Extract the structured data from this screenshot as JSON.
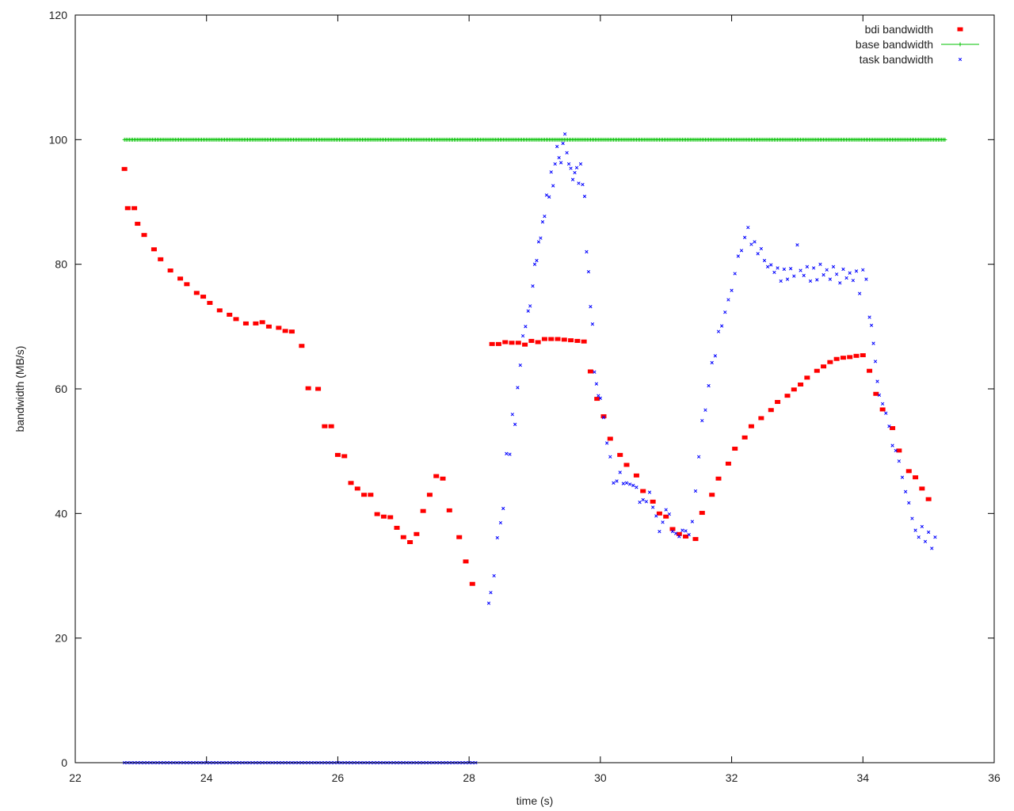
{
  "chart_data": {
    "type": "scatter",
    "title": "",
    "xlabel": "time (s)",
    "ylabel": "bandwidth (MB/s)",
    "xlim": [
      22,
      36
    ],
    "ylim": [
      0,
      120
    ],
    "x_ticks": [
      "22",
      "24",
      "26",
      "28",
      "30",
      "32",
      "34",
      "36"
    ],
    "y_ticks": [
      "0",
      "20",
      "40",
      "60",
      "80",
      "100",
      "120"
    ],
    "grid": false,
    "legend_position": "top-right",
    "series": [
      {
        "name": "bdi bandwidth",
        "color": "#ff0000",
        "marker": "square",
        "points": [
          [
            22.75,
            95.3
          ],
          [
            22.8,
            89
          ],
          [
            22.9,
            89
          ],
          [
            22.95,
            86.5
          ],
          [
            23.05,
            84.7
          ],
          [
            23.2,
            82.4
          ],
          [
            23.3,
            80.8
          ],
          [
            23.45,
            79
          ],
          [
            23.6,
            77.7
          ],
          [
            23.7,
            76.8
          ],
          [
            23.85,
            75.4
          ],
          [
            23.95,
            74.8
          ],
          [
            24.05,
            73.8
          ],
          [
            24.2,
            72.6
          ],
          [
            24.35,
            71.9
          ],
          [
            24.45,
            71.2
          ],
          [
            24.6,
            70.5
          ],
          [
            24.75,
            70.5
          ],
          [
            24.85,
            70.7
          ],
          [
            24.95,
            70.0
          ],
          [
            25.1,
            69.8
          ],
          [
            25.2,
            69.3
          ],
          [
            25.3,
            69.2
          ],
          [
            25.45,
            66.9
          ],
          [
            25.55,
            60.1
          ],
          [
            25.7,
            60.0
          ],
          [
            25.8,
            54.0
          ],
          [
            25.9,
            54.0
          ],
          [
            26.0,
            49.4
          ],
          [
            26.1,
            49.2
          ],
          [
            26.2,
            44.9
          ],
          [
            26.3,
            44.0
          ],
          [
            26.4,
            43.0
          ],
          [
            26.5,
            43.0
          ],
          [
            26.6,
            39.9
          ],
          [
            26.7,
            39.5
          ],
          [
            26.8,
            39.4
          ],
          [
            26.9,
            37.7
          ],
          [
            27.0,
            36.2
          ],
          [
            27.1,
            35.4
          ],
          [
            27.2,
            36.7
          ],
          [
            27.3,
            40.4
          ],
          [
            27.4,
            43.0
          ],
          [
            27.5,
            46.0
          ],
          [
            27.6,
            45.6
          ],
          [
            27.7,
            40.5
          ],
          [
            27.85,
            36.2
          ],
          [
            27.95,
            32.3
          ],
          [
            28.05,
            28.7
          ],
          [
            28.35,
            67.2
          ],
          [
            28.45,
            67.2
          ],
          [
            28.55,
            67.5
          ],
          [
            28.65,
            67.4
          ],
          [
            28.75,
            67.4
          ],
          [
            28.85,
            67.1
          ],
          [
            28.95,
            67.7
          ],
          [
            29.05,
            67.5
          ],
          [
            29.15,
            68.0
          ],
          [
            29.25,
            68.0
          ],
          [
            29.35,
            68.0
          ],
          [
            29.45,
            67.9
          ],
          [
            29.55,
            67.8
          ],
          [
            29.65,
            67.7
          ],
          [
            29.75,
            67.6
          ],
          [
            29.85,
            62.8
          ],
          [
            29.95,
            58.4
          ],
          [
            30.05,
            55.6
          ],
          [
            30.15,
            52.0
          ],
          [
            30.3,
            49.4
          ],
          [
            30.4,
            47.8
          ],
          [
            30.55,
            46.1
          ],
          [
            30.65,
            43.6
          ],
          [
            30.8,
            41.9
          ],
          [
            30.9,
            40.0
          ],
          [
            31.0,
            39.5
          ],
          [
            31.1,
            37.5
          ],
          [
            31.2,
            36.7
          ],
          [
            31.3,
            36.3
          ],
          [
            31.45,
            35.9
          ],
          [
            31.55,
            40.1
          ],
          [
            31.7,
            43.0
          ],
          [
            31.8,
            45.6
          ],
          [
            31.95,
            48.0
          ],
          [
            32.05,
            50.4
          ],
          [
            32.2,
            52.2
          ],
          [
            32.3,
            54.0
          ],
          [
            32.45,
            55.3
          ],
          [
            32.6,
            56.6
          ],
          [
            32.7,
            57.9
          ],
          [
            32.85,
            58.9
          ],
          [
            32.95,
            59.9
          ],
          [
            33.05,
            60.7
          ],
          [
            33.15,
            61.8
          ],
          [
            33.3,
            62.9
          ],
          [
            33.4,
            63.6
          ],
          [
            33.5,
            64.3
          ],
          [
            33.6,
            64.8
          ],
          [
            33.7,
            65.0
          ],
          [
            33.8,
            65.1
          ],
          [
            33.9,
            65.3
          ],
          [
            34.0,
            65.4
          ],
          [
            34.1,
            62.9
          ],
          [
            34.2,
            59.2
          ],
          [
            34.3,
            56.7
          ],
          [
            34.45,
            53.7
          ],
          [
            34.55,
            50.1
          ],
          [
            34.7,
            46.8
          ],
          [
            34.8,
            45.8
          ],
          [
            34.9,
            44.0
          ],
          [
            35.0,
            42.3
          ]
        ]
      },
      {
        "name": "base bandwidth",
        "color": "#00c000",
        "marker": "plus",
        "x_range": [
          22.75,
          35.25
        ],
        "x_step": 0.025,
        "y_constant": 100
      },
      {
        "name": "task bandwidth",
        "color": "#0000ff",
        "marker": "x",
        "zero_segment": {
          "x_range": [
            22.75,
            28.1
          ],
          "x_step": 0.05,
          "y": 0
        },
        "points": [
          [
            28.3,
            25.6
          ],
          [
            28.33,
            27.3
          ],
          [
            28.38,
            30.0
          ],
          [
            28.43,
            36.1
          ],
          [
            28.48,
            38.5
          ],
          [
            28.52,
            40.8
          ],
          [
            28.57,
            49.6
          ],
          [
            28.62,
            49.5
          ],
          [
            28.66,
            55.9
          ],
          [
            28.7,
            54.3
          ],
          [
            28.74,
            60.2
          ],
          [
            28.78,
            63.8
          ],
          [
            28.82,
            68.5
          ],
          [
            28.86,
            70.0
          ],
          [
            28.9,
            72.5
          ],
          [
            28.93,
            73.3
          ],
          [
            28.97,
            76.5
          ],
          [
            29.0,
            80.0
          ],
          [
            29.03,
            80.6
          ],
          [
            29.06,
            83.6
          ],
          [
            29.09,
            84.2
          ],
          [
            29.12,
            86.8
          ],
          [
            29.15,
            87.7
          ],
          [
            29.18,
            91.1
          ],
          [
            29.22,
            90.8
          ],
          [
            29.25,
            94.8
          ],
          [
            29.28,
            92.6
          ],
          [
            29.31,
            96.1
          ],
          [
            29.34,
            98.9
          ],
          [
            29.37,
            97.1
          ],
          [
            29.4,
            96.3
          ],
          [
            29.43,
            99.4
          ],
          [
            29.46,
            100.9
          ],
          [
            29.49,
            97.9
          ],
          [
            29.52,
            96.1
          ],
          [
            29.55,
            95.4
          ],
          [
            29.58,
            93.6
          ],
          [
            29.61,
            94.7
          ],
          [
            29.64,
            95.5
          ],
          [
            29.67,
            93.0
          ],
          [
            29.7,
            96.1
          ],
          [
            29.73,
            92.8
          ],
          [
            29.76,
            90.9
          ],
          [
            29.79,
            82.0
          ],
          [
            29.82,
            78.8
          ],
          [
            29.85,
            73.2
          ],
          [
            29.88,
            70.4
          ],
          [
            29.91,
            62.7
          ],
          [
            29.94,
            60.8
          ],
          [
            29.97,
            58.9
          ],
          [
            30.0,
            58.5
          ],
          [
            30.05,
            55.4
          ],
          [
            30.1,
            51.3
          ],
          [
            30.15,
            49.1
          ],
          [
            30.2,
            44.9
          ],
          [
            30.25,
            45.2
          ],
          [
            30.3,
            46.6
          ],
          [
            30.35,
            44.8
          ],
          [
            30.4,
            44.9
          ],
          [
            30.45,
            44.7
          ],
          [
            30.5,
            44.5
          ],
          [
            30.55,
            44.2
          ],
          [
            30.6,
            41.8
          ],
          [
            30.65,
            42.2
          ],
          [
            30.7,
            41.9
          ],
          [
            30.75,
            43.4
          ],
          [
            30.8,
            41.0
          ],
          [
            30.85,
            39.6
          ],
          [
            30.9,
            37.1
          ],
          [
            30.95,
            38.6
          ],
          [
            31.0,
            40.6
          ],
          [
            31.05,
            39.9
          ],
          [
            31.1,
            37.1
          ],
          [
            31.15,
            36.8
          ],
          [
            31.2,
            36.3
          ],
          [
            31.25,
            37.3
          ],
          [
            31.3,
            37.2
          ],
          [
            31.35,
            36.6
          ],
          [
            31.4,
            38.7
          ],
          [
            31.45,
            43.6
          ],
          [
            31.5,
            49.1
          ],
          [
            31.55,
            54.9
          ],
          [
            31.6,
            56.6
          ],
          [
            31.65,
            60.5
          ],
          [
            31.7,
            64.2
          ],
          [
            31.75,
            65.3
          ],
          [
            31.8,
            69.2
          ],
          [
            31.85,
            70.1
          ],
          [
            31.9,
            72.3
          ],
          [
            31.95,
            74.3
          ],
          [
            32.0,
            75.8
          ],
          [
            32.05,
            78.5
          ],
          [
            32.1,
            81.3
          ],
          [
            32.15,
            82.2
          ],
          [
            32.2,
            84.3
          ],
          [
            32.25,
            85.9
          ],
          [
            32.3,
            83.2
          ],
          [
            32.35,
            83.6
          ],
          [
            32.4,
            81.7
          ],
          [
            32.45,
            82.5
          ],
          [
            32.5,
            80.6
          ],
          [
            32.55,
            79.6
          ],
          [
            32.6,
            79.9
          ],
          [
            32.65,
            78.7
          ],
          [
            32.7,
            79.4
          ],
          [
            32.75,
            77.3
          ],
          [
            32.8,
            79.2
          ],
          [
            32.85,
            77.6
          ],
          [
            32.9,
            79.3
          ],
          [
            32.95,
            78.1
          ],
          [
            33.0,
            83.1
          ],
          [
            33.05,
            79.0
          ],
          [
            33.1,
            78.2
          ],
          [
            33.15,
            79.6
          ],
          [
            33.2,
            77.3
          ],
          [
            33.25,
            79.4
          ],
          [
            33.3,
            77.5
          ],
          [
            33.35,
            80.0
          ],
          [
            33.4,
            78.3
          ],
          [
            33.45,
            79.1
          ],
          [
            33.5,
            77.6
          ],
          [
            33.55,
            79.6
          ],
          [
            33.6,
            78.4
          ],
          [
            33.65,
            77.0
          ],
          [
            33.7,
            79.2
          ],
          [
            33.75,
            77.8
          ],
          [
            33.8,
            78.6
          ],
          [
            33.85,
            77.4
          ],
          [
            33.9,
            78.9
          ],
          [
            33.95,
            75.3
          ],
          [
            34.0,
            79.1
          ],
          [
            34.05,
            77.6
          ],
          [
            34.1,
            71.5
          ],
          [
            34.13,
            70.2
          ],
          [
            34.16,
            67.3
          ],
          [
            34.19,
            64.4
          ],
          [
            34.22,
            61.2
          ],
          [
            34.25,
            59.0
          ],
          [
            34.3,
            57.6
          ],
          [
            34.35,
            56.1
          ],
          [
            34.4,
            54.0
          ],
          [
            34.45,
            50.9
          ],
          [
            34.5,
            50.1
          ],
          [
            34.55,
            48.4
          ],
          [
            34.6,
            45.8
          ],
          [
            34.65,
            43.5
          ],
          [
            34.7,
            41.7
          ],
          [
            34.75,
            39.2
          ],
          [
            34.8,
            37.3
          ],
          [
            34.85,
            36.2
          ],
          [
            34.9,
            37.9
          ],
          [
            34.95,
            35.5
          ],
          [
            35.0,
            37.0
          ],
          [
            35.05,
            34.4
          ],
          [
            35.1,
            36.2
          ]
        ]
      }
    ]
  }
}
